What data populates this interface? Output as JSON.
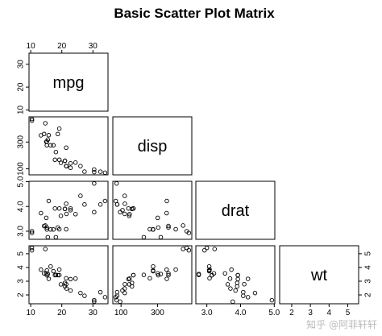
{
  "chart_data": {
    "type": "scatter",
    "title": "Basic Scatter Plot Matrix",
    "variables": [
      "mpg",
      "disp",
      "drat",
      "wt"
    ],
    "ranges": {
      "mpg": [
        10.4,
        33.9
      ],
      "disp": [
        71.1,
        472.0
      ],
      "drat": [
        2.76,
        4.93
      ],
      "wt": [
        1.513,
        5.424
      ]
    },
    "ticks": {
      "mpg": [
        10,
        20,
        30
      ],
      "disp": [
        100,
        300
      ],
      "drat": [
        3.0,
        4.0,
        5.0
      ],
      "wt": [
        2,
        3,
        4,
        5
      ]
    },
    "tick_labels": {
      "mpg": [
        "10",
        "20",
        "30"
      ],
      "disp": [
        "100",
        "300"
      ],
      "drat": [
        "3.0",
        "4.0",
        "5.0"
      ],
      "wt": [
        "2",
        "3",
        "4",
        "5"
      ]
    },
    "layout": "lower triangle scatter panels, variable names on diagonal, upper triangle empty",
    "data": {
      "mpg": [
        21.0,
        21.0,
        22.8,
        21.4,
        18.7,
        18.1,
        14.3,
        24.4,
        22.8,
        19.2,
        17.8,
        16.4,
        17.3,
        15.2,
        10.4,
        10.4,
        14.7,
        32.4,
        30.4,
        33.9,
        21.5,
        15.5,
        15.2,
        13.3,
        19.2,
        27.3,
        26.0,
        30.4,
        15.8,
        19.7,
        15.0,
        21.4
      ],
      "disp": [
        160,
        160,
        108,
        258,
        360,
        225,
        360,
        146.7,
        140.8,
        167.6,
        167.6,
        275.8,
        275.8,
        275.8,
        472,
        460,
        440,
        78.7,
        75.7,
        71.1,
        120.1,
        318,
        304,
        350,
        400,
        79,
        120.3,
        95.1,
        351,
        145,
        301,
        121
      ],
      "drat": [
        3.9,
        3.9,
        3.85,
        3.08,
        3.15,
        2.76,
        3.21,
        3.69,
        3.92,
        3.92,
        3.92,
        3.07,
        3.07,
        3.07,
        2.93,
        3.0,
        3.23,
        4.08,
        4.93,
        4.22,
        3.7,
        2.76,
        3.15,
        3.73,
        3.08,
        4.08,
        4.43,
        3.77,
        4.22,
        3.62,
        3.54,
        4.11
      ],
      "wt": [
        2.62,
        2.875,
        2.32,
        3.215,
        3.44,
        3.46,
        3.57,
        3.19,
        3.15,
        3.44,
        3.44,
        4.07,
        3.73,
        3.78,
        5.25,
        5.424,
        5.345,
        2.2,
        1.615,
        1.835,
        2.465,
        3.52,
        3.435,
        3.84,
        3.845,
        1.935,
        2.14,
        1.513,
        3.17,
        2.77,
        3.57,
        2.78
      ]
    }
  },
  "watermark": "知乎 @阿菲轩轩"
}
